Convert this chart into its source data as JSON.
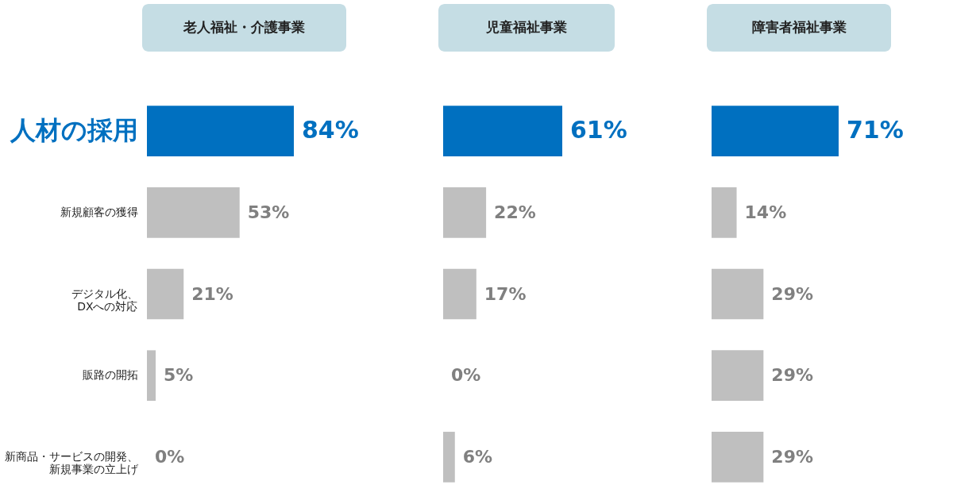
{
  "chart_data": [
    {
      "type": "bar",
      "orientation": "horizontal",
      "title": "老人福祉・介護事業",
      "categories": [
        "人材の採用",
        "新規顧客の獲得",
        "デジタル化、DXへの対応",
        "販路の開拓",
        "新商品・サービスの開発、新規事業の立上げ"
      ],
      "values": [
        84,
        53,
        21,
        5,
        0
      ],
      "value_labels": [
        "84%",
        "53%",
        "21%",
        "5%",
        "0%"
      ],
      "colors": [
        "#0070c0",
        "#bfbfbf",
        "#bfbfbf",
        "#bfbfbf",
        "#bfbfbf"
      ],
      "tick_labels": "y"
    },
    {
      "type": "bar",
      "orientation": "horizontal",
      "title": "児童福祉事業",
      "categories": [
        null,
        null,
        null,
        null,
        null
      ],
      "values": [
        61,
        22,
        17,
        0,
        6
      ],
      "value_labels": [
        "61%",
        "22%",
        "17%",
        "0%",
        "6%"
      ],
      "colors": [
        "#0070c0",
        "#bfbfbf",
        "#bfbfbf",
        "#bfbfbf",
        "#bfbfbf"
      ],
      "tick_labels": false
    },
    {
      "type": "bar",
      "orientation": "horizontal",
      "title": "障害者福祉事業",
      "categories": [
        null,
        null,
        null,
        null,
        null
      ],
      "values": [
        71,
        14,
        29,
        29,
        29
      ],
      "value_labels": [
        "71%",
        "14%",
        "29%",
        "29%",
        "29%"
      ],
      "colors": [
        "#0070c0",
        "#bfbfbf",
        "#bfbfbf",
        "#bfbfbf",
        "#bfbfbf"
      ],
      "tick_labels": false
    }
  ]
}
